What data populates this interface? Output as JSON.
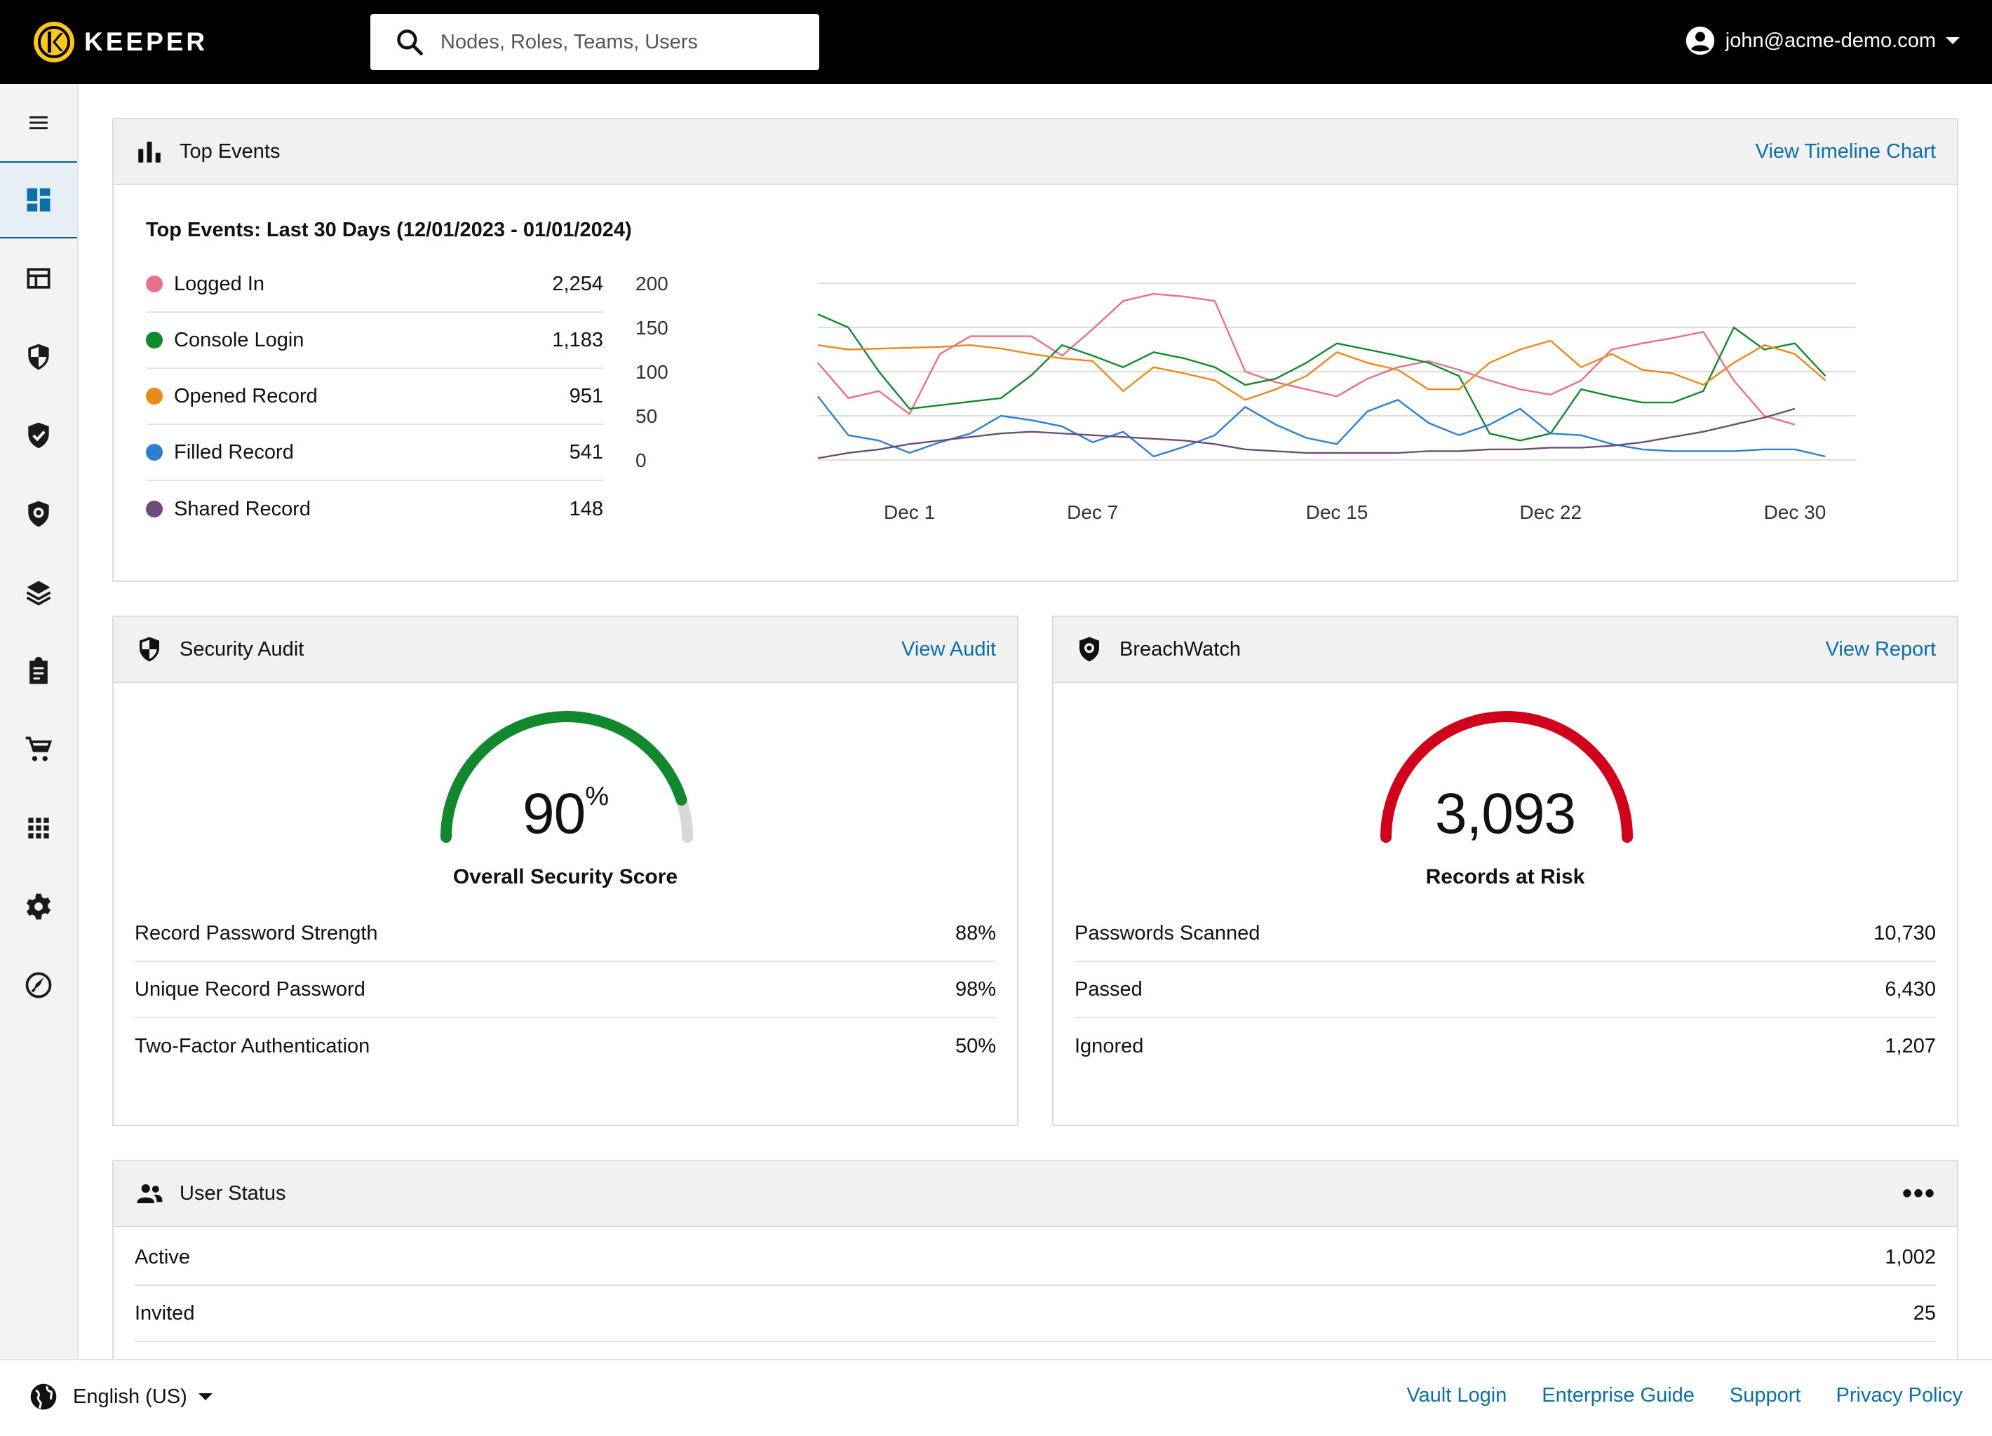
{
  "header": {
    "brand": "KEEPER",
    "search_placeholder": "Nodes, Roles, Teams, Users",
    "user_email": "john@acme-demo.com"
  },
  "sidebar": {
    "items": [
      {
        "name": "menu",
        "icon": "menu-icon"
      },
      {
        "name": "dashboard",
        "icon": "dashboard-icon",
        "active": true
      },
      {
        "name": "admin",
        "icon": "layout-icon"
      },
      {
        "name": "security-audit",
        "icon": "shield-half-icon"
      },
      {
        "name": "compliance",
        "icon": "shield-check-icon"
      },
      {
        "name": "breachwatch",
        "icon": "shield-eye-icon"
      },
      {
        "name": "reporting",
        "icon": "layers-icon"
      },
      {
        "name": "clipboard",
        "icon": "clipboard-icon"
      },
      {
        "name": "cart",
        "icon": "cart-icon"
      },
      {
        "name": "apps",
        "icon": "grid-icon"
      },
      {
        "name": "settings",
        "icon": "gear-icon"
      },
      {
        "name": "onboarding",
        "icon": "rocket-icon"
      }
    ]
  },
  "top_events": {
    "title": "Top Events",
    "link": "View Timeline Chart",
    "subtitle": "Top Events: Last 30 Days (12/01/2023 - 01/01/2024)",
    "legend": [
      {
        "label": "Logged In",
        "value": "2,254",
        "color": "#e8708a"
      },
      {
        "label": "Console Login",
        "value": "1,183",
        "color": "#12882e"
      },
      {
        "label": "Opened Record",
        "value": "951",
        "color": "#e98a1a"
      },
      {
        "label": "Filled Record",
        "value": "541",
        "color": "#2f7fd1"
      },
      {
        "label": "Shared Record",
        "value": "148",
        "color": "#6e4c7a"
      }
    ]
  },
  "chart_data": {
    "type": "line",
    "title": "",
    "xlabel": "",
    "ylabel": "",
    "ylim": [
      0,
      200
    ],
    "yticks": [
      "200",
      "150",
      "100",
      "50",
      "0"
    ],
    "xtick_labels": [
      "Dec 1",
      "Dec 7",
      "Dec 15",
      "Dec 22",
      "Dec 30"
    ],
    "xtick_days": [
      1,
      7,
      15,
      22,
      30
    ],
    "x": [
      "Nov 28",
      "Nov 29",
      "Nov 30",
      "Dec 1",
      "Dec 2",
      "Dec 3",
      "Dec 4",
      "Dec 5",
      "Dec 6",
      "Dec 7",
      "Dec 8",
      "Dec 9",
      "Dec 10",
      "Dec 11",
      "Dec 12",
      "Dec 13",
      "Dec 14",
      "Dec 15",
      "Dec 16",
      "Dec 17",
      "Dec 18",
      "Dec 19",
      "Dec 20",
      "Dec 21",
      "Dec 22",
      "Dec 23",
      "Dec 24",
      "Dec 25",
      "Dec 26",
      "Dec 27",
      "Dec 28",
      "Dec 29",
      "Dec 30",
      "Dec 31",
      "Jan 1"
    ],
    "series": [
      {
        "name": "Logged In",
        "color": "#e8708a",
        "values": [
          110,
          70,
          78,
          52,
          120,
          140,
          140,
          140,
          118,
          148,
          180,
          188,
          185,
          180,
          100,
          88,
          80,
          72,
          92,
          105,
          112,
          102,
          90,
          80,
          74,
          90,
          125,
          132,
          138,
          145,
          90,
          50,
          40,
          null,
          null
        ]
      },
      {
        "name": "Console Login",
        "color": "#12882e",
        "values": [
          165,
          150,
          100,
          58,
          62,
          66,
          70,
          96,
          130,
          118,
          105,
          122,
          115,
          105,
          85,
          92,
          110,
          132,
          125,
          118,
          110,
          95,
          30,
          22,
          30,
          80,
          72,
          65,
          65,
          78,
          150,
          125,
          132,
          95,
          null
        ]
      },
      {
        "name": "Opened Record",
        "color": "#e98a1a",
        "values": [
          130,
          125,
          126,
          127,
          128,
          130,
          126,
          120,
          115,
          112,
          78,
          105,
          98,
          90,
          68,
          80,
          95,
          122,
          110,
          102,
          80,
          80,
          110,
          125,
          135,
          105,
          120,
          102,
          98,
          85,
          110,
          130,
          120,
          90,
          null
        ]
      },
      {
        "name": "Filled Record",
        "color": "#2f7fd1",
        "values": [
          72,
          28,
          22,
          8,
          20,
          30,
          50,
          45,
          38,
          20,
          32,
          4,
          15,
          28,
          60,
          40,
          25,
          18,
          55,
          68,
          42,
          28,
          40,
          58,
          30,
          28,
          18,
          12,
          10,
          10,
          10,
          12,
          12,
          4,
          null
        ]
      },
      {
        "name": "Shared Record",
        "color": "#6e4c7a",
        "values": [
          2,
          8,
          12,
          18,
          22,
          26,
          30,
          32,
          30,
          28,
          26,
          24,
          22,
          18,
          12,
          10,
          8,
          8,
          8,
          8,
          10,
          10,
          12,
          12,
          14,
          14,
          16,
          20,
          26,
          32,
          40,
          48,
          58,
          null,
          null
        ]
      }
    ]
  },
  "security_audit": {
    "title": "Security Audit",
    "link": "View Audit",
    "score": "90",
    "score_unit": "%",
    "score_fraction": 0.9,
    "gauge_color": "#12882e",
    "label": "Overall Security Score",
    "rows": [
      {
        "label": "Record Password Strength",
        "value": "88%"
      },
      {
        "label": "Unique Record Password",
        "value": "98%"
      },
      {
        "label": "Two-Factor Authentication",
        "value": "50%"
      }
    ]
  },
  "breachwatch": {
    "title": "BreachWatch",
    "link": "View Report",
    "count": "3,093",
    "gauge_color": "#d0021b",
    "label": "Records at Risk",
    "rows": [
      {
        "label": "Passwords Scanned",
        "value": "10,730"
      },
      {
        "label": "Passed",
        "value": "6,430"
      },
      {
        "label": "Ignored",
        "value": "1,207"
      }
    ]
  },
  "user_status": {
    "title": "User Status",
    "menu": "•••",
    "rows": [
      {
        "label": "Active",
        "value": "1,002"
      },
      {
        "label": "Invited",
        "value": "25"
      }
    ]
  },
  "footer": {
    "language": "English (US)",
    "links": [
      "Vault Login",
      "Enterprise Guide",
      "Support",
      "Privacy Policy"
    ]
  }
}
